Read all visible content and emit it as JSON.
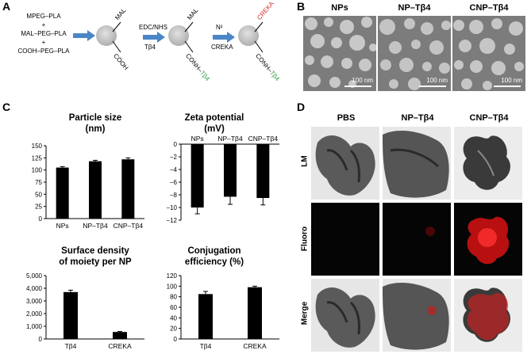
{
  "panel_a": {
    "label": "A",
    "reagents": [
      "MPEG–PLA",
      "+",
      "MAL–PEG–PLA",
      "+",
      "COOH–PEG–PLA"
    ],
    "np1": {
      "top": "MAL",
      "bottom": "COOH"
    },
    "step1": {
      "top": "EDC/NHS",
      "bottom": "Tβ4"
    },
    "np2": {
      "top": "MAL",
      "bottom_prefix": "CONH–",
      "bottom_suffix": "Tβ4"
    },
    "step2": {
      "top": "N²",
      "bottom": "CREKA"
    },
    "np3": {
      "top": "CREKA",
      "bottom_prefix": "CONH–",
      "bottom_suffix": "Tβ4"
    }
  },
  "panel_b": {
    "label": "B",
    "columns": [
      "NPs",
      "NP–Tβ4",
      "CNP–Tβ4"
    ],
    "scale": "100 nm"
  },
  "panel_c": {
    "label": "C",
    "chart_data": [
      {
        "type": "bar",
        "title": "Particle size (nm)",
        "title_lines": [
          "Particle size",
          "(nm)"
        ],
        "categories": [
          "NPs",
          "NP–Tβ4",
          "CNP–Tβ4"
        ],
        "values": [
          105,
          118,
          122
        ],
        "errors": [
          2,
          2,
          3
        ],
        "ylim": [
          0,
          150
        ],
        "yticks": [
          0,
          25,
          50,
          75,
          100,
          125,
          150
        ],
        "ytick_labels": [
          "0",
          "25",
          "50",
          "75",
          "100",
          "125",
          "150"
        ]
      },
      {
        "type": "bar",
        "title": "Zeta potential (mV)",
        "title_lines": [
          "Zeta potential",
          "(mV)"
        ],
        "categories": [
          "NPs",
          "NP–Tβ4",
          "CNP–Tβ4"
        ],
        "values": [
          -10.0,
          -8.3,
          -8.5
        ],
        "errors": [
          1.0,
          1.2,
          1.1
        ],
        "ylim": [
          -12,
          0
        ],
        "yticks": [
          0,
          -2,
          -4,
          -6,
          -8,
          -10,
          -12
        ],
        "ytick_labels": [
          "0",
          "−2",
          "−4",
          "−6",
          "−8",
          "−10",
          "−12"
        ]
      },
      {
        "type": "bar",
        "title": "Surface density of moiety per NP",
        "title_lines": [
          "Surface density",
          "of moiety per NP"
        ],
        "categories": [
          "Tβ4",
          "CREKA"
        ],
        "values": [
          3700,
          550
        ],
        "errors": [
          150,
          40
        ],
        "ylim": [
          0,
          5000
        ],
        "yticks": [
          0,
          1000,
          2000,
          3000,
          4000,
          5000
        ],
        "ytick_labels": [
          "0",
          "1,000",
          "2,000",
          "3,000",
          "4,000",
          "5,000"
        ]
      },
      {
        "type": "bar",
        "title": "Conjugation efficiency (%)",
        "title_lines": [
          "Conjugation",
          "efficiency (%)"
        ],
        "categories": [
          "Tβ4",
          "CREKA"
        ],
        "values": [
          85,
          98
        ],
        "errors": [
          5,
          2
        ],
        "ylim": [
          0,
          120
        ],
        "yticks": [
          0,
          20,
          40,
          60,
          80,
          100,
          120
        ],
        "ytick_labels": [
          "0",
          "20",
          "40",
          "60",
          "80",
          "100",
          "120"
        ]
      }
    ]
  },
  "panel_d": {
    "label": "D",
    "columns": [
      "PBS",
      "NP–Tβ4",
      "CNP–Tβ4"
    ],
    "rows": [
      "LM",
      "Fluoro",
      "Merge"
    ]
  }
}
